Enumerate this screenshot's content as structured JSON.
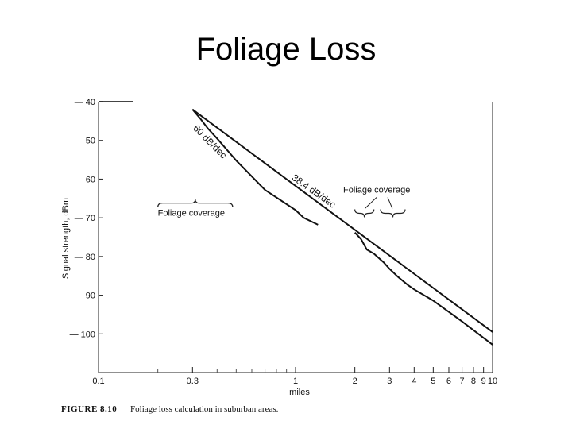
{
  "slide": {
    "title": "Foliage Loss"
  },
  "figure": {
    "number": "FIGURE 8.10",
    "caption": "Foliage loss calculation in suburban areas."
  },
  "chart_data": {
    "type": "line",
    "title": "",
    "xlabel": "miles",
    "ylabel": "Signal strength, dBm",
    "x_scale": "log",
    "xlim": [
      0.1,
      10
    ],
    "ylim": [
      -110,
      -40
    ],
    "x_ticks": [
      0.1,
      0.3,
      1,
      2,
      3,
      4,
      5,
      6,
      7,
      8,
      9,
      10
    ],
    "x_tick_labels": [
      "0.1",
      "0.3",
      "1",
      "2",
      "3",
      "4",
      "5",
      "6",
      "7",
      "8",
      "9",
      "10"
    ],
    "y_ticks": [
      -40,
      -50,
      -60,
      -70,
      -80,
      -90,
      -100
    ],
    "y_tick_labels": [
      "— 40",
      "— 50",
      "— 60",
      "— 70",
      "— 80",
      "— 90",
      "— 100"
    ],
    "grid": false,
    "series": [
      {
        "x": [
          0.3,
          10
        ],
        "y": [
          -42,
          -99.5
        ]
      },
      {
        "x": [
          0.3,
          0.33,
          0.36,
          0.4,
          0.5,
          0.7,
          1,
          1.1,
          1.3
        ],
        "y": [
          -42,
          -44.5,
          -47,
          -49.5,
          -55.2,
          -62.8,
          -68,
          -70,
          -71.8
        ]
      },
      {
        "x": [
          2,
          2.15,
          2.3,
          2.5,
          2.8,
          3,
          3.3,
          3.7,
          4,
          5,
          7,
          10
        ],
        "y": [
          -73.8,
          -75.5,
          -78.2,
          -79.3,
          -81.5,
          -83.2,
          -85.2,
          -87.3,
          -88.5,
          -91.4,
          -96.8,
          -102.8
        ]
      }
    ],
    "annotations": [
      {
        "text": "60 dB/dec",
        "x": 0.3,
        "y": -47
      },
      {
        "text": "38.4 dB/dec",
        "x": 0.95,
        "y": -60
      },
      {
        "text": "Foliage coverage",
        "x": 0.2,
        "y": -69.5,
        "x_range": [
          0.2,
          0.48
        ]
      },
      {
        "text": "Foliage coverage",
        "x": 2.1,
        "y": -63.5,
        "x_range": [
          2,
          2.5
        ],
        "x_range_2": [
          2.7,
          3.6
        ]
      }
    ]
  }
}
